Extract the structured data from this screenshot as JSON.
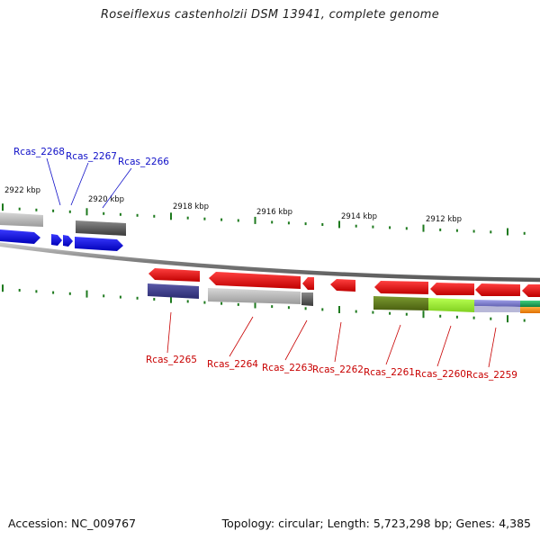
{
  "title": "Roseiflexus castenholzii DSM 13941, complete genome",
  "footer": {
    "accession": "Accession: NC_009767",
    "topology": "Topology: circular; Length: 5,723,298 bp; Genes: 4,385"
  },
  "colors": {
    "forward_label": "#1010c8",
    "reverse_label": "#c80000",
    "forward_gene": "#1414f0",
    "reverse_gene": "#ee1010",
    "tick": "#1e7a1e",
    "backbone": "#808080"
  },
  "kbp_labels": [
    "2922 kbp",
    "2920 kbp",
    "2918 kbp",
    "2916 kbp",
    "2914 kbp",
    "2912 kbp"
  ],
  "genes_top": [
    {
      "name": "Rcas_2268"
    },
    {
      "name": "Rcas_2267"
    },
    {
      "name": "Rcas_2266"
    }
  ],
  "genes_bottom": [
    {
      "name": "Rcas_2265"
    },
    {
      "name": "Rcas_2264"
    },
    {
      "name": "Rcas_2263"
    },
    {
      "name": "Rcas_2262"
    },
    {
      "name": "Rcas_2261"
    },
    {
      "name": "Rcas_2260"
    },
    {
      "name": "Rcas_2259"
    }
  ]
}
